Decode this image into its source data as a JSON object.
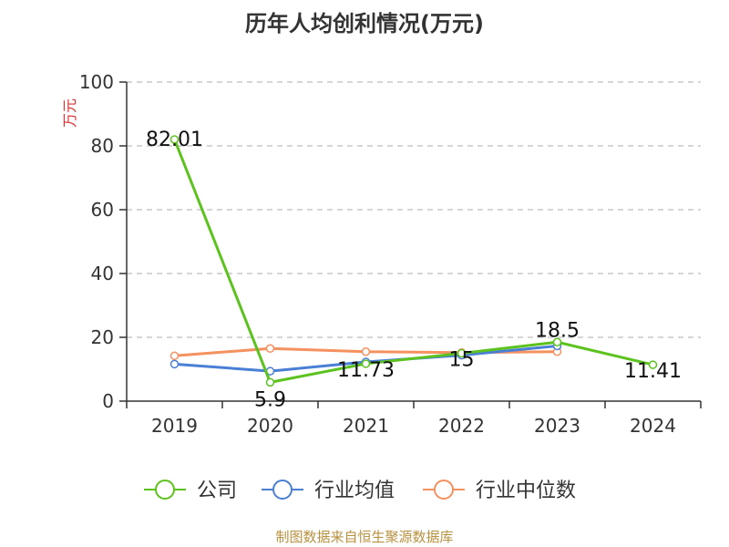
{
  "title": "历年人均创利情况(万元)",
  "footer": "制图数据来自恒生聚源数据库",
  "colors": {
    "company": "#5cc21e",
    "industry_avg": "#4a7fd6",
    "industry_median": "#f5905f",
    "grid": "#c8c8c8",
    "axis": "#333333",
    "unit": "#e03030"
  },
  "chart_data": {
    "type": "line",
    "title": "历年人均创利情况(万元)",
    "ylabel": "万元",
    "xlabel": "",
    "ylim": [
      0,
      100
    ],
    "yticks": [
      0,
      20,
      40,
      60,
      80,
      100
    ],
    "categories": [
      "2019",
      "2020",
      "2021",
      "2022",
      "2023",
      "2024"
    ],
    "series": [
      {
        "name": "公司",
        "colorKey": "company",
        "values": [
          82.01,
          5.9,
          11.73,
          15,
          18.5,
          11.41
        ]
      },
      {
        "name": "行业均值",
        "colorKey": "industry_avg",
        "values": [
          11.6,
          9.4,
          12.3,
          14.4,
          17.3,
          null
        ]
      },
      {
        "name": "行业中位数",
        "colorKey": "industry_median",
        "values": [
          14.2,
          16.5,
          15.5,
          15.2,
          15.5,
          null
        ]
      }
    ],
    "data_labels": [
      "82.01",
      "5.9",
      "11.73",
      "15",
      "18.5",
      "11.41"
    ],
    "legend_position": "bottom"
  }
}
